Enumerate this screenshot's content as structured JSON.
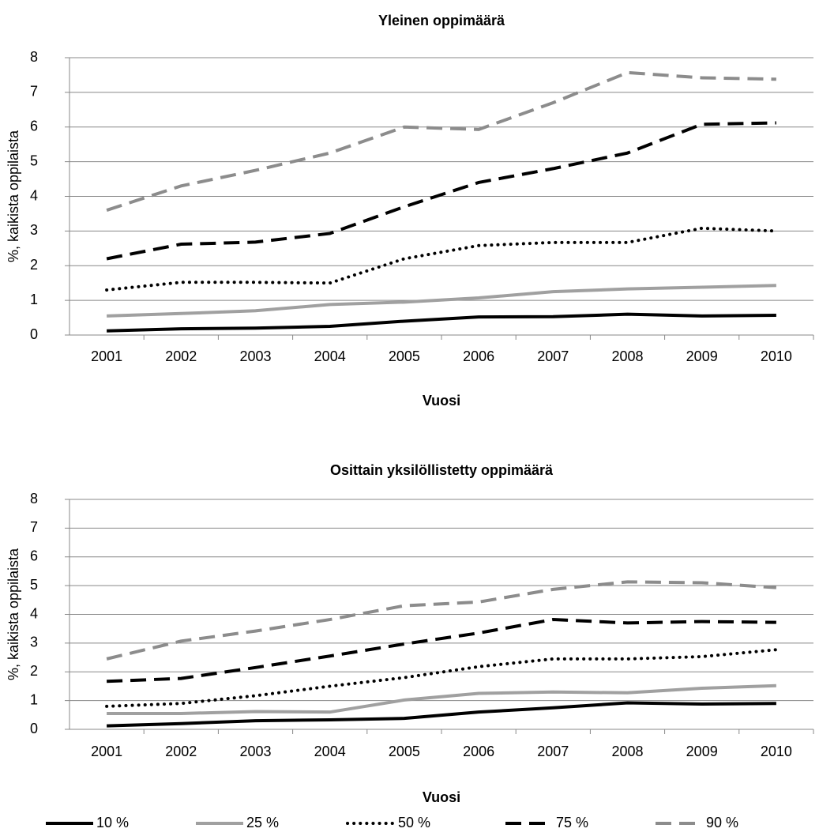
{
  "chart_data": [
    {
      "type": "line",
      "title": "Yleinen oppimäärä",
      "x_label": "Vuosi",
      "y_label": "%, kaikista oppilaista",
      "categories": [
        "2001",
        "2002",
        "2003",
        "2004",
        "2005",
        "2006",
        "2007",
        "2008",
        "2009",
        "2010"
      ],
      "ylim": [
        0,
        8
      ],
      "yticks": [
        0,
        1,
        2,
        3,
        4,
        5,
        6,
        7,
        8
      ],
      "grid": true,
      "series": [
        {
          "color": "#000000",
          "dash": "solid",
          "values": [
            0.12,
            0.18,
            0.2,
            0.25,
            0.4,
            0.52,
            0.53,
            0.6,
            0.55,
            0.57
          ]
        },
        {
          "color": "#a0a0a0",
          "dash": "solid",
          "values": [
            0.55,
            0.62,
            0.7,
            0.88,
            0.95,
            1.07,
            1.25,
            1.33,
            1.38,
            1.43
          ]
        },
        {
          "color": "#000000",
          "dash": "dotted",
          "values": [
            1.3,
            1.52,
            1.52,
            1.5,
            2.2,
            2.58,
            2.67,
            2.67,
            3.08,
            3.0
          ]
        },
        {
          "color": "#000000",
          "dash": "dashed",
          "values": [
            2.2,
            2.62,
            2.68,
            2.93,
            3.7,
            4.4,
            4.8,
            5.25,
            6.08,
            6.12
          ]
        },
        {
          "color": "#8c8c8c",
          "dash": "dashed",
          "values": [
            3.6,
            4.3,
            4.75,
            5.25,
            6.0,
            5.93,
            6.7,
            7.57,
            7.42,
            7.38
          ]
        }
      ]
    },
    {
      "type": "line",
      "title": "Osittain yksilöllistetty oppimäärä",
      "x_label": "Vuosi",
      "y_label": "%, kaikista oppilaista",
      "categories": [
        "2001",
        "2002",
        "2003",
        "2004",
        "2005",
        "2006",
        "2007",
        "2008",
        "2009",
        "2010"
      ],
      "ylim": [
        0,
        8
      ],
      "yticks": [
        0,
        1,
        2,
        3,
        4,
        5,
        6,
        7,
        8
      ],
      "grid": true,
      "series": [
        {
          "name": "10 %",
          "color": "#000000",
          "dash": "solid",
          "values": [
            0.12,
            0.2,
            0.3,
            0.33,
            0.38,
            0.6,
            0.75,
            0.92,
            0.88,
            0.9
          ]
        },
        {
          "name": "25 %",
          "color": "#a0a0a0",
          "dash": "solid",
          "values": [
            0.55,
            0.55,
            0.62,
            0.6,
            1.02,
            1.25,
            1.3,
            1.27,
            1.43,
            1.52
          ]
        },
        {
          "name": "50 %",
          "color": "#000000",
          "dash": "dotted",
          "values": [
            0.8,
            0.9,
            1.17,
            1.5,
            1.8,
            2.18,
            2.45,
            2.45,
            2.53,
            2.77
          ]
        },
        {
          "name": "75 %",
          "color": "#000000",
          "dash": "dashed",
          "values": [
            1.67,
            1.77,
            2.15,
            2.55,
            2.97,
            3.35,
            3.82,
            3.7,
            3.75,
            3.72
          ]
        },
        {
          "name": "90 %",
          "color": "#8c8c8c",
          "dash": "dashed",
          "values": [
            2.45,
            3.07,
            3.42,
            3.82,
            4.3,
            4.43,
            4.87,
            5.13,
            5.1,
            4.93
          ]
        }
      ]
    }
  ]
}
